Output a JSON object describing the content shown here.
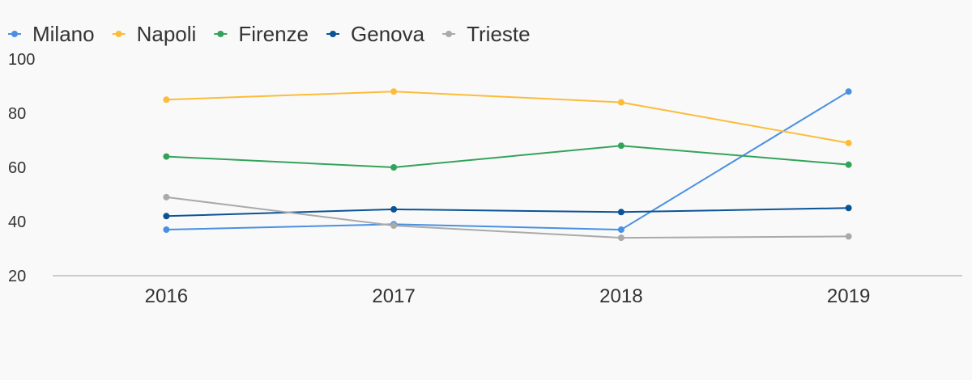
{
  "chart_data": {
    "type": "line",
    "title": "",
    "xlabel": "",
    "ylabel": "",
    "categories": [
      "2016",
      "2017",
      "2018",
      "2019"
    ],
    "ylim": [
      20,
      100
    ],
    "yticks": [
      20,
      40,
      60,
      80,
      100
    ],
    "legend_position": "top-left",
    "grid": false,
    "series": [
      {
        "name": "Milano",
        "color": "#4a90e2",
        "values": [
          37,
          39,
          37,
          88
        ]
      },
      {
        "name": "Napoli",
        "color": "#fbbc3a",
        "values": [
          85,
          88,
          84,
          69
        ]
      },
      {
        "name": "Firenze",
        "color": "#34a35a",
        "values": [
          64,
          60,
          68,
          61
        ]
      },
      {
        "name": "Genova",
        "color": "#0b5394",
        "values": [
          42,
          44.5,
          43.5,
          45
        ]
      },
      {
        "name": "Trieste",
        "color": "#aaaaaa",
        "values": [
          49,
          38.5,
          34,
          34.5
        ]
      }
    ]
  }
}
